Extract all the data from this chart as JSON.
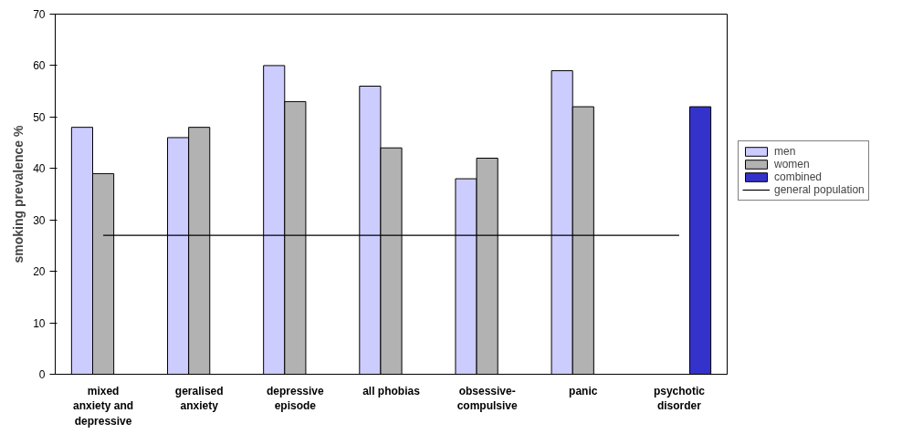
{
  "chart_data": {
    "type": "bar",
    "ylabel": "smoking prevalence %",
    "categories": [
      "mixed anxiety and depressive",
      "geralised anxiety",
      "depressive episode",
      "all phobias",
      "obsessive-compulsive",
      "panic",
      "psychotic disorder"
    ],
    "series": [
      {
        "name": "men",
        "color": "#ccccff",
        "values": [
          48,
          46,
          60,
          56,
          38,
          59,
          null
        ]
      },
      {
        "name": "women",
        "color": "#b2b2b2",
        "values": [
          39,
          48,
          53,
          44,
          42,
          52,
          null
        ]
      },
      {
        "name": "combined",
        "color": "#3333cc",
        "values": [
          null,
          null,
          null,
          null,
          null,
          null,
          52
        ]
      },
      {
        "name": "general population",
        "type": "line",
        "color": "#000000",
        "values": [
          27,
          27,
          27,
          27,
          27,
          27,
          27
        ]
      }
    ],
    "ylim": [
      0,
      70
    ],
    "yticks": [
      0,
      10,
      20,
      30,
      40,
      50,
      60,
      70
    ],
    "grid": false,
    "legend": "right"
  }
}
